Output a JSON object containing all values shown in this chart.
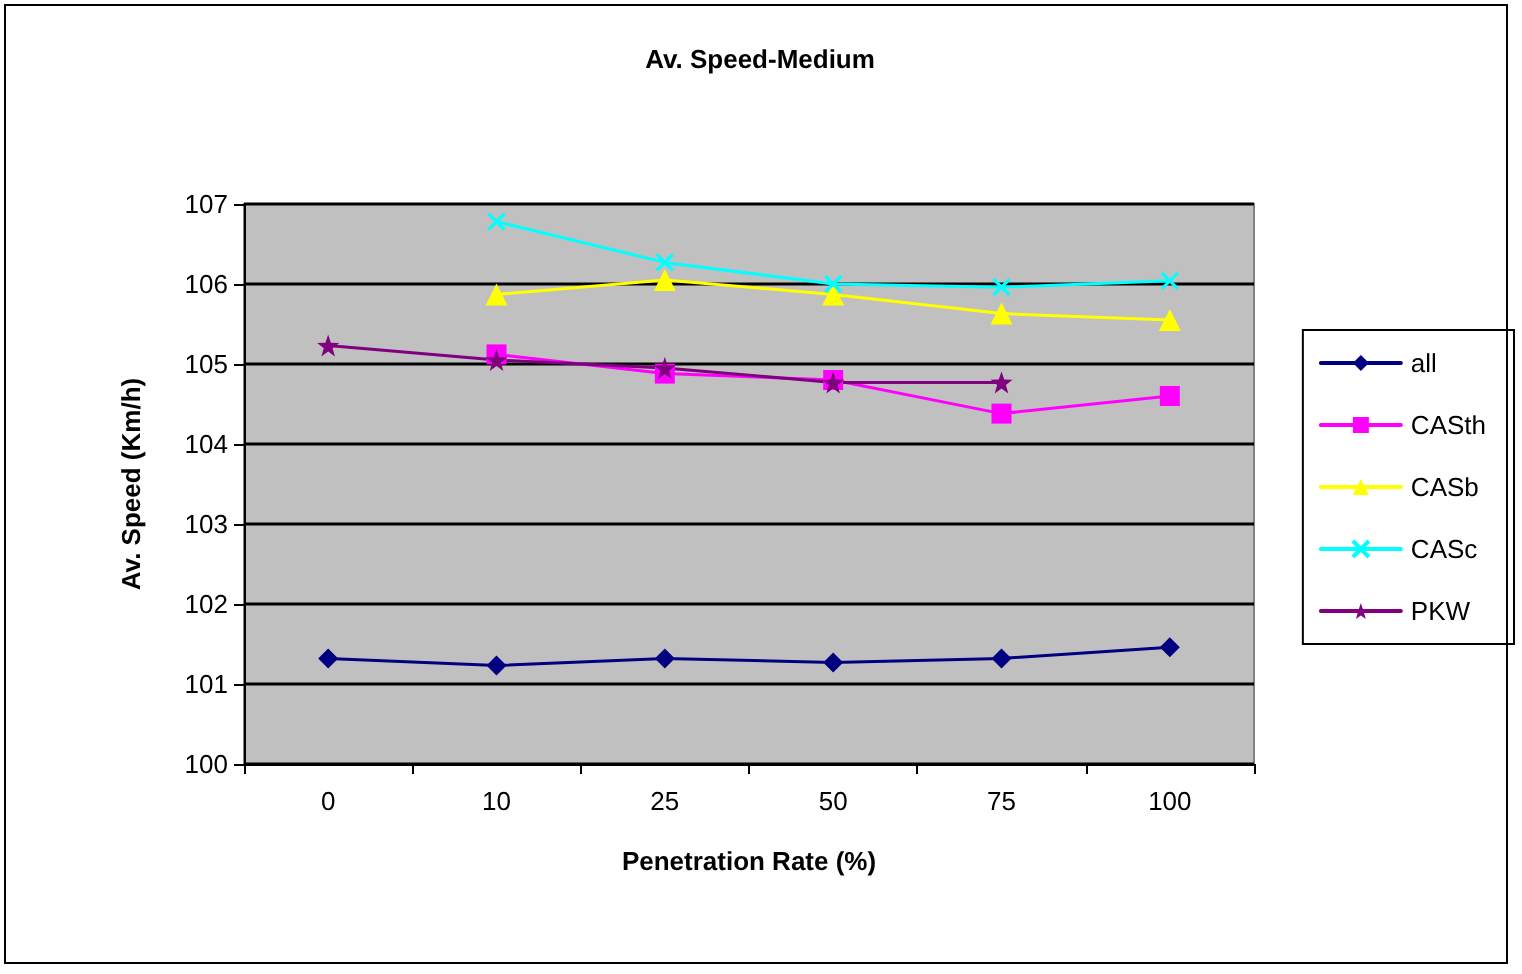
{
  "chart_data": {
    "type": "line",
    "title": "Av. Speed-Medium",
    "xlabel": "Penetration Rate (%)",
    "ylabel": "Av. Speed (Km/h)",
    "categories": [
      "0",
      "10",
      "25",
      "50",
      "75",
      "100"
    ],
    "series": [
      {
        "name": "all",
        "color": "#000080",
        "marker": "diamond",
        "values": [
          101.32,
          101.23,
          101.32,
          101.27,
          101.32,
          101.46
        ]
      },
      {
        "name": "CASth",
        "color": "#ff00ff",
        "marker": "square",
        "values": [
          null,
          105.12,
          104.88,
          104.8,
          104.38,
          104.6
        ]
      },
      {
        "name": "CASb",
        "color": "#ffff00",
        "marker": "triangle",
        "values": [
          null,
          105.87,
          106.05,
          105.87,
          105.63,
          105.55
        ]
      },
      {
        "name": "CASc",
        "color": "#00ffff",
        "marker": "cross",
        "values": [
          null,
          106.78,
          106.27,
          106.0,
          105.96,
          106.04
        ]
      },
      {
        "name": "PKW",
        "color": "#800080",
        "marker": "star",
        "values": [
          105.23,
          105.05,
          104.95,
          104.77,
          104.77,
          null
        ]
      }
    ],
    "ylim": [
      100,
      107
    ],
    "yticks": [
      100,
      101,
      102,
      103,
      104,
      105,
      106,
      107
    ],
    "grid": "y",
    "legend": "right",
    "line_style": "solid"
  }
}
